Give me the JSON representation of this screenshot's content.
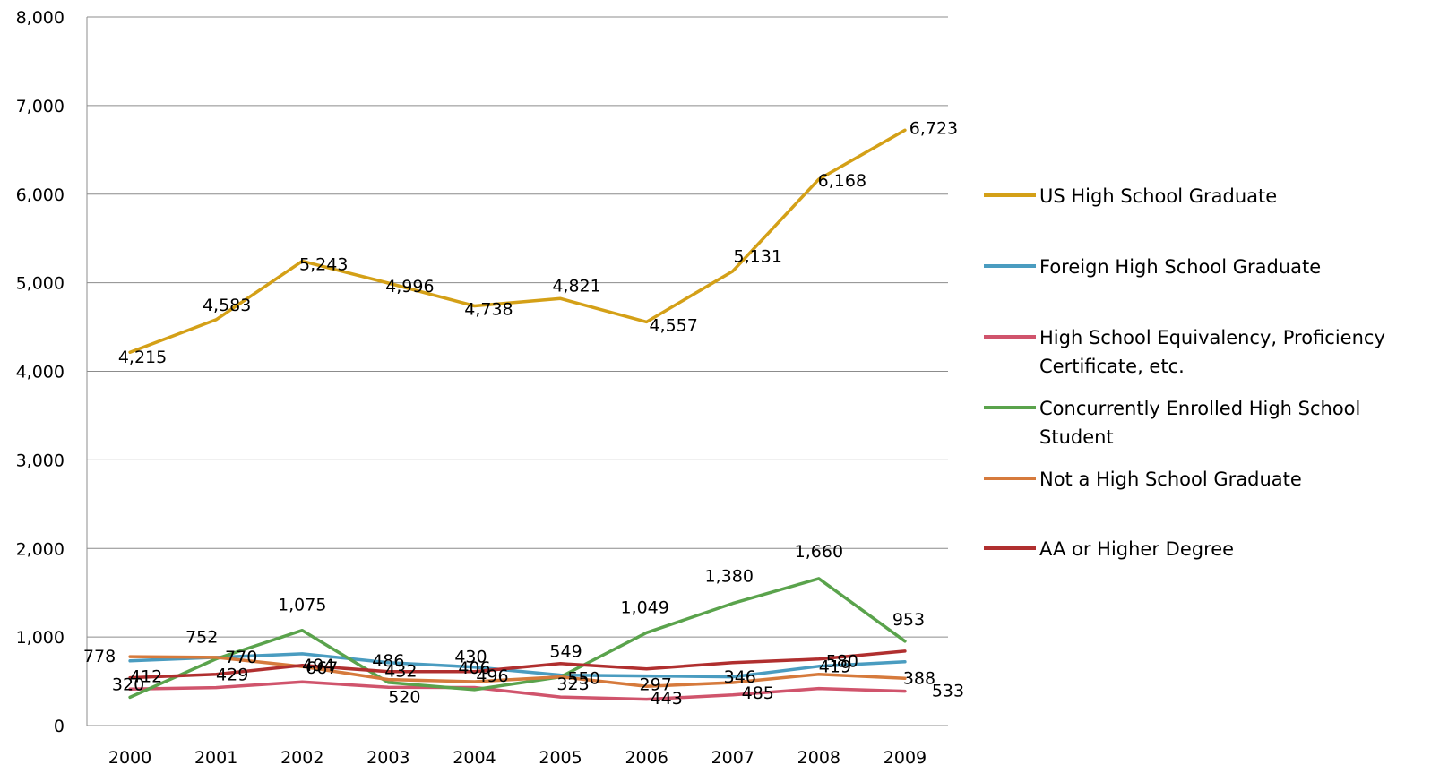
{
  "chart_data": {
    "type": "line",
    "categories": [
      "2000",
      "2001",
      "2002",
      "2003",
      "2004",
      "2005",
      "2006",
      "2007",
      "2008",
      "2009"
    ],
    "ylim": [
      0,
      8000
    ],
    "yticks": [
      0,
      1000,
      2000,
      3000,
      4000,
      5000,
      6000,
      7000,
      8000
    ],
    "ytick_labels": [
      "0",
      "1,000",
      "2,000",
      "3,000",
      "4,000",
      "5,000",
      "6,000",
      "7,000",
      "8,000"
    ],
    "grid": true,
    "legend_position": "right",
    "series": [
      {
        "name": "US High School Graduate",
        "color": "#d4a017",
        "values": [
          4215,
          4583,
          5243,
          4996,
          4738,
          4821,
          4557,
          5131,
          6168,
          6723
        ],
        "labels": [
          "4,215",
          "4,583",
          "5,243",
          "4,996",
          "4,738",
          "4,821",
          "4,557",
          "5,131",
          "6,168",
          "6,723"
        ]
      },
      {
        "name": "Foreign High School Graduate",
        "color": "#4a9cc0",
        "values": [
          730,
          770,
          810,
          710,
          660,
          570,
          560,
          550,
          670,
          720
        ],
        "labels": []
      },
      {
        "name": "High School Equivalency, Proficiency Certificate, etc.",
        "color": "#d0546c",
        "values": [
          412,
          429,
          494,
          432,
          430,
          323,
          297,
          346,
          419,
          388
        ],
        "labels": [
          "412",
          "429",
          "494",
          "432",
          "430",
          "323",
          "297",
          "346",
          "419",
          "388"
        ]
      },
      {
        "name": "Concurrently Enrolled High School Student",
        "color": "#5aa34c",
        "values": [
          320,
          752,
          1075,
          486,
          406,
          549,
          1049,
          1380,
          1660,
          953
        ],
        "labels": [
          "320",
          "752",
          "1,075",
          "486",
          "406",
          "549",
          "1,049",
          "1,380",
          "1,660",
          "953"
        ]
      },
      {
        "name": "Not a High School Graduate",
        "color": "#d67a3c",
        "values": [
          778,
          770,
          667,
          520,
          496,
          550,
          443,
          485,
          580,
          533
        ],
        "labels": [
          "778",
          "770",
          "667",
          "520",
          "496",
          "550",
          "443",
          "485",
          "580",
          "533"
        ]
      },
      {
        "name": "AA or Higher Degree",
        "color": "#b02f2f",
        "values": [
          540,
          580,
          680,
          610,
          610,
          700,
          640,
          710,
          750,
          840
        ],
        "labels": []
      }
    ]
  }
}
